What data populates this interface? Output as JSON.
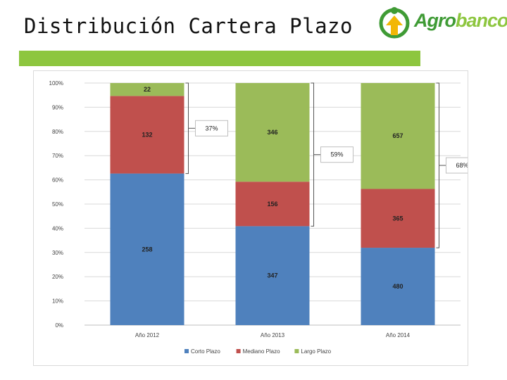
{
  "slide": {
    "title": "Distribución Cartera Plazo",
    "accent_color": "#8dc63f",
    "logo_text_a": "Agro",
    "logo_text_b": "banco",
    "logo_color_a": "#3f9b35",
    "logo_color_b": "#8dc63f"
  },
  "chart_data": {
    "type": "bar",
    "stacked": "percent",
    "categories": [
      "Año 2012",
      "Año 2013",
      "Año 2014"
    ],
    "series": [
      {
        "name": "Corto Plazo",
        "color": "#4f81bd",
        "values": [
          258,
          347,
          480
        ]
      },
      {
        "name": "Mediano Plazo",
        "color": "#c0504d",
        "values": [
          132,
          156,
          365
        ]
      },
      {
        "name": "Largo Plazo",
        "color": "#9bbb59",
        "values": [
          22,
          346,
          657
        ]
      }
    ],
    "yticks": [
      "0%",
      "10%",
      "20%",
      "30%",
      "40%",
      "50%",
      "60%",
      "70%",
      "80%",
      "90%",
      "100%"
    ],
    "ylim": [
      0,
      100
    ],
    "grid": true,
    "legend": "bottom",
    "annotations": [
      "37%",
      "59%",
      "68%"
    ]
  }
}
